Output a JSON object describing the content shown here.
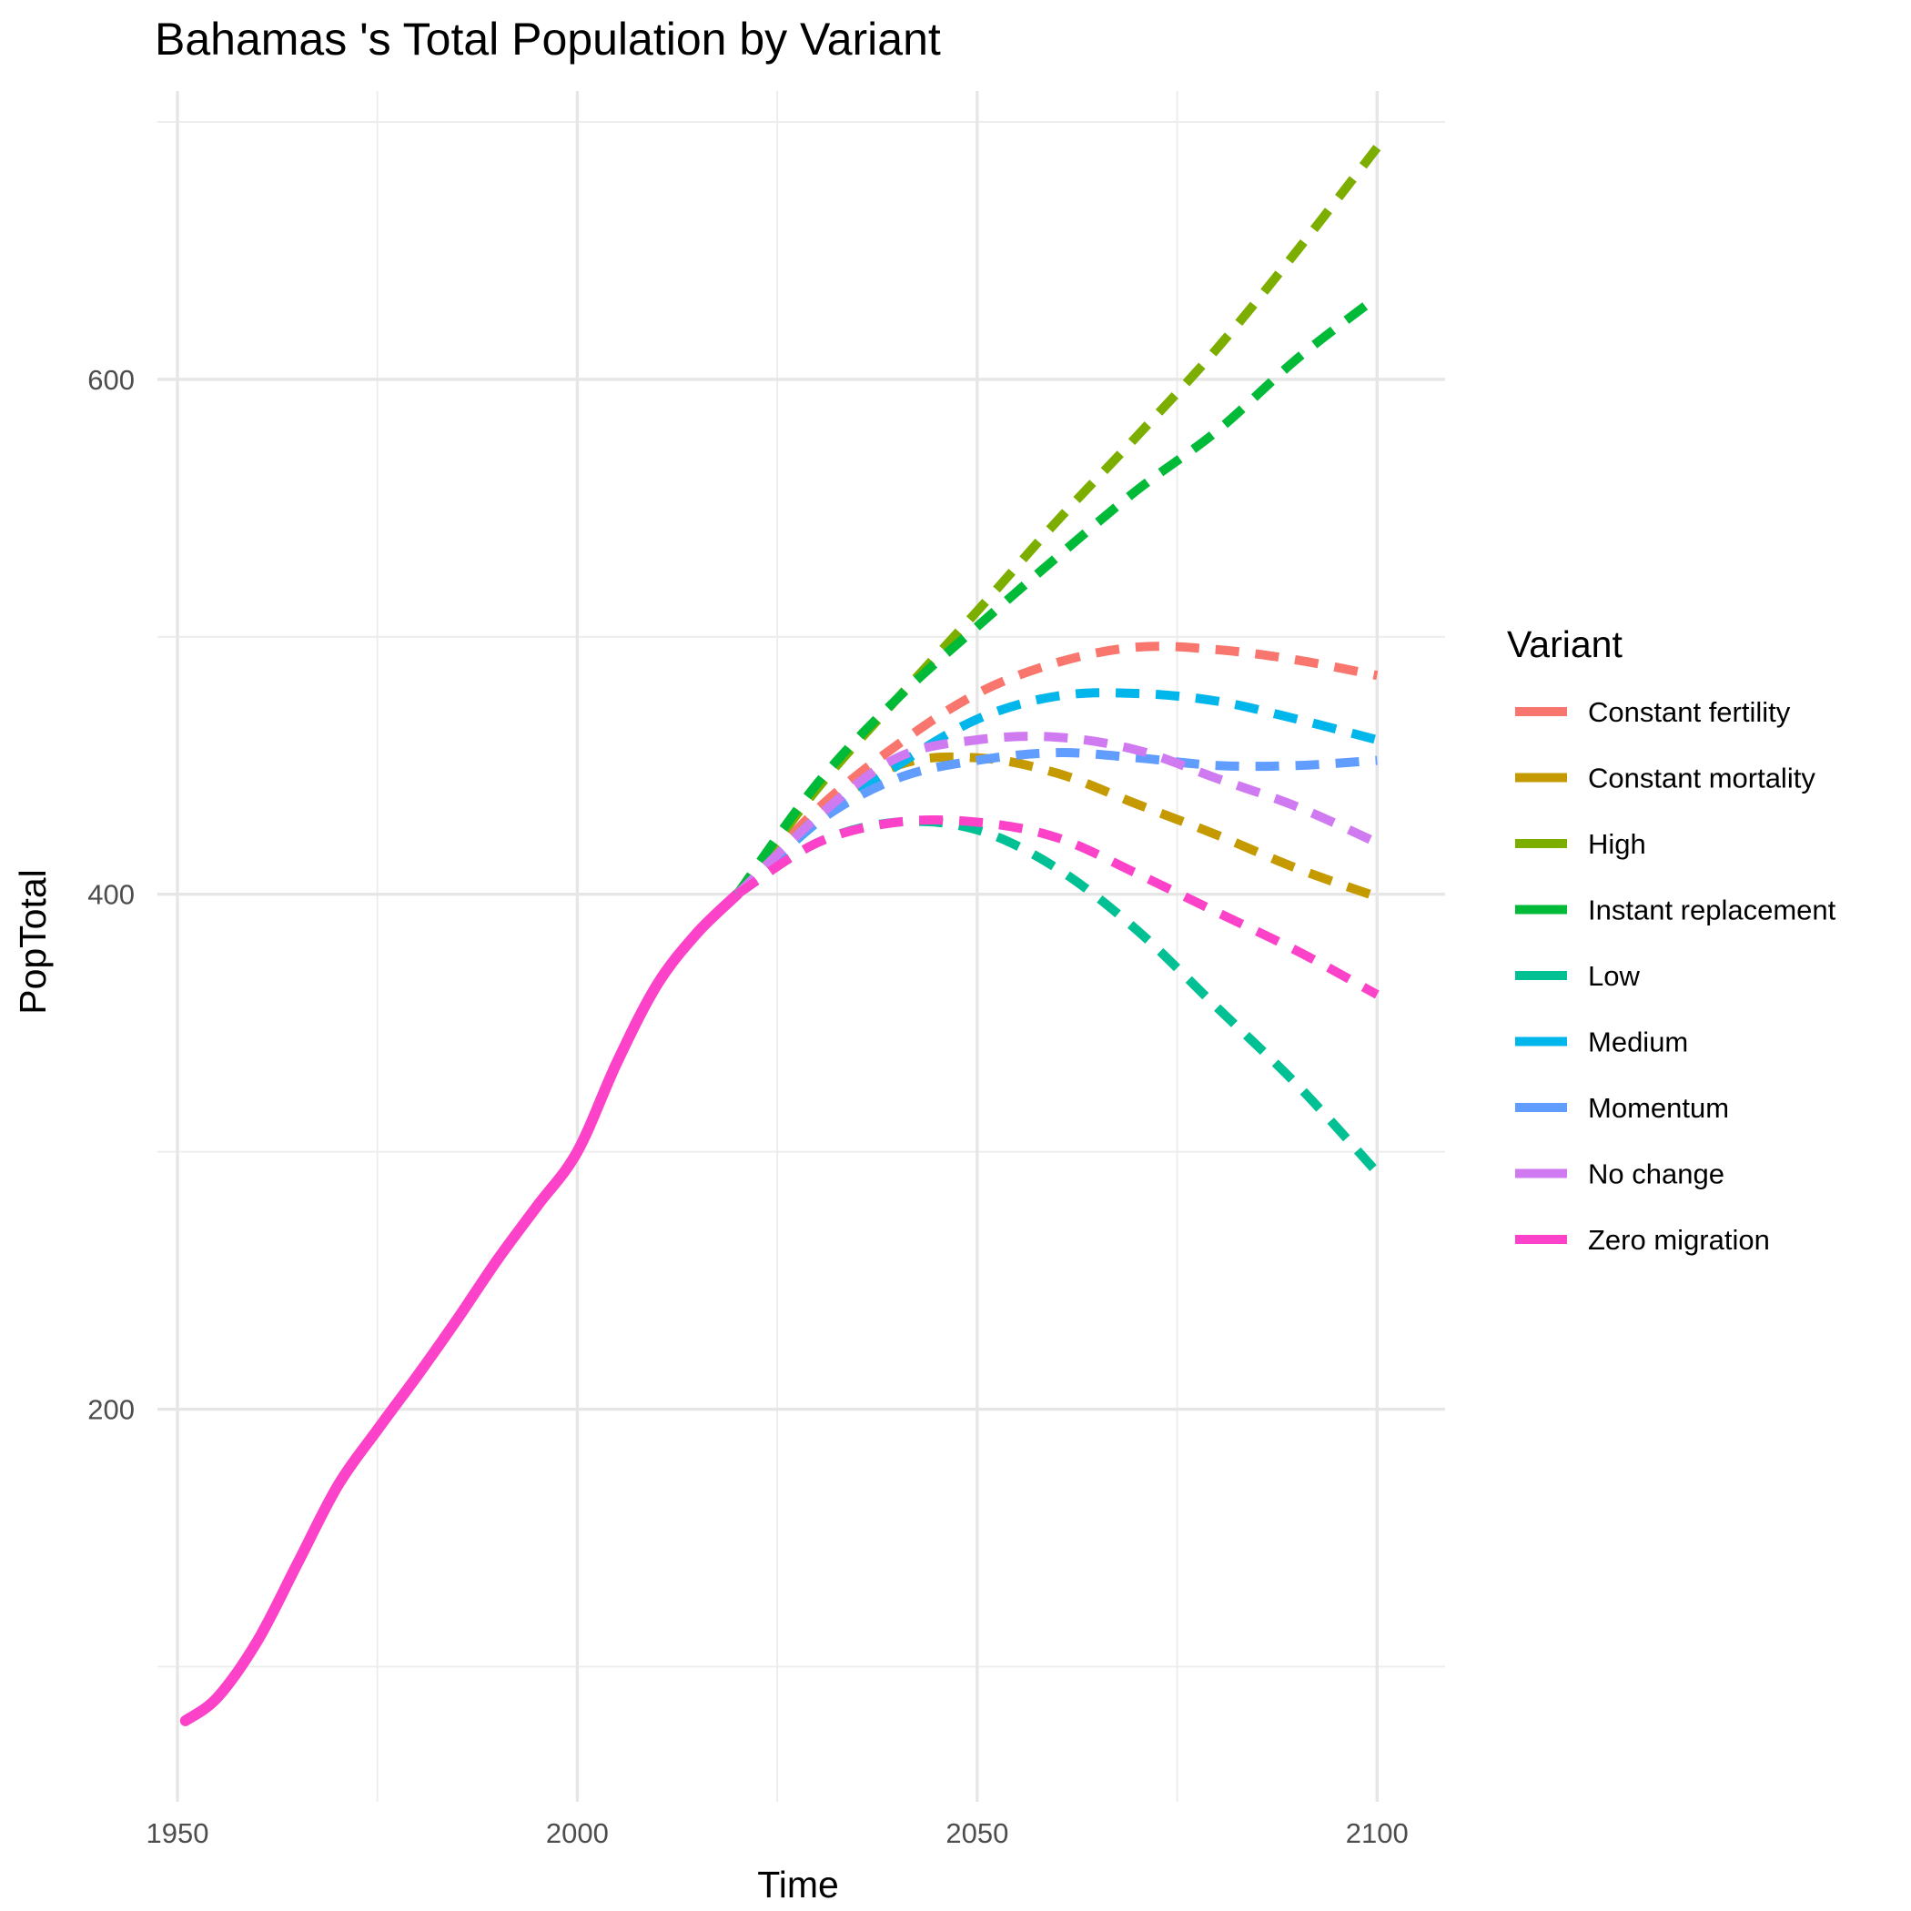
{
  "chart_data": {
    "type": "line",
    "title": "Bahamas 's Total Population by Variant",
    "xlabel": "Time",
    "ylabel": "PopTotal",
    "xlim": [
      1947.5,
      2108.5
    ],
    "ylim": [
      47.5,
      712
    ],
    "x_ticks": [
      1950,
      2000,
      2050,
      2100
    ],
    "y_ticks": [
      200,
      400,
      600
    ],
    "grid": true,
    "legend": {
      "title": "Variant",
      "position": "right"
    },
    "history": {
      "name": "Zero migration",
      "x": [
        1951,
        1955,
        1960,
        1965,
        1970,
        1975,
        1980,
        1985,
        1990,
        1995,
        2000,
        2005,
        2010,
        2015,
        2020
      ],
      "y": [
        79,
        88,
        110,
        140,
        170,
        192,
        213,
        235,
        258,
        279,
        300,
        335,
        365,
        385,
        400
      ]
    },
    "series": [
      {
        "name": "Constant fertility",
        "color": "#F8766D",
        "x": [
          2020,
          2030,
          2040,
          2050,
          2060,
          2070,
          2080,
          2090,
          2100
        ],
        "y": [
          400,
          433,
          458,
          478,
          490,
          496,
          495,
          491,
          485
        ]
      },
      {
        "name": "Constant mortality",
        "color": "#C49A00",
        "x": [
          2020,
          2030,
          2040,
          2050,
          2060,
          2070,
          2080,
          2090,
          2100
        ],
        "y": [
          400,
          430,
          450,
          453,
          447,
          435,
          423,
          410,
          399
        ]
      },
      {
        "name": "High",
        "color": "#7CAE00",
        "x": [
          2020,
          2030,
          2040,
          2050,
          2060,
          2070,
          2080,
          2090,
          2100
        ],
        "y": [
          400,
          441,
          476,
          510,
          545,
          578,
          612,
          650,
          690
        ]
      },
      {
        "name": "Instant replacement",
        "color": "#00BA38",
        "x": [
          2020,
          2030,
          2040,
          2050,
          2060,
          2070,
          2080,
          2090,
          2100
        ],
        "y": [
          400,
          443,
          476,
          504,
          531,
          557,
          580,
          608,
          632
        ]
      },
      {
        "name": "Low",
        "color": "#00C094",
        "x": [
          2020,
          2030,
          2040,
          2050,
          2060,
          2070,
          2080,
          2090,
          2100
        ],
        "y": [
          400,
          420,
          428,
          425,
          410,
          386,
          356,
          326,
          292
        ]
      },
      {
        "name": "Medium",
        "color": "#00B6EB",
        "x": [
          2020,
          2030,
          2040,
          2050,
          2060,
          2070,
          2080,
          2090,
          2100
        ],
        "y": [
          400,
          428,
          450,
          468,
          477,
          478,
          475,
          468,
          460
        ]
      },
      {
        "name": "Momentum",
        "color": "#619CFF",
        "x": [
          2020,
          2030,
          2040,
          2050,
          2060,
          2070,
          2080,
          2090,
          2100
        ],
        "y": [
          400,
          428,
          445,
          452,
          455,
          453,
          450,
          450,
          452
        ]
      },
      {
        "name": "No change",
        "color": "#D07AF1",
        "x": [
          2020,
          2030,
          2040,
          2050,
          2060,
          2070,
          2080,
          2090,
          2100
        ],
        "y": [
          400,
          430,
          453,
          460,
          461,
          456,
          445,
          434,
          420
        ]
      },
      {
        "name": "Zero migration",
        "color": "#FB42C9",
        "x": [
          2020,
          2030,
          2040,
          2050,
          2060,
          2070,
          2080,
          2090,
          2100
        ],
        "y": [
          400,
          420,
          428,
          428,
          422,
          408,
          393,
          378,
          361
        ]
      }
    ]
  }
}
